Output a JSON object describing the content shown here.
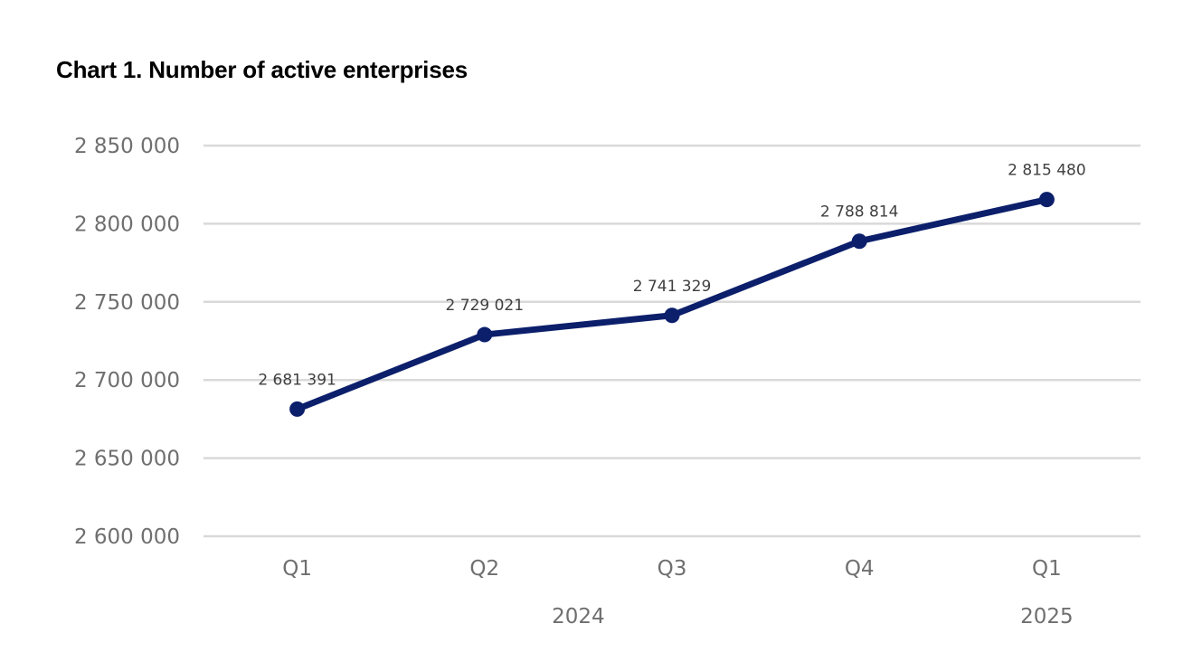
{
  "chart_data": {
    "type": "line",
    "title": "Chart 1. Number of active enterprises",
    "xlabel": "",
    "ylabel": "",
    "categories": [
      "Q1",
      "Q2",
      "Q3",
      "Q4",
      "Q1"
    ],
    "category_groups": [
      {
        "label": "2024",
        "span": [
          0,
          3
        ]
      },
      {
        "label": "2025",
        "span": [
          4,
          4
        ]
      }
    ],
    "series": [
      {
        "values": [
          2681391,
          2729021,
          2741329,
          2788814,
          2815480
        ],
        "data_labels": [
          "2 681 391",
          "2 729 021",
          "2 741 329",
          "2 788 814",
          "2 815 480"
        ]
      }
    ],
    "ylim": [
      2600000,
      2850000
    ],
    "yticks": [
      2600000,
      2650000,
      2700000,
      2750000,
      2800000,
      2850000
    ],
    "ytick_labels": [
      "2 600 000",
      "2 650 000",
      "2 700 000",
      "2 750 000",
      "2 800 000",
      "2 850 000"
    ],
    "grid": true,
    "legend": "none",
    "colors": {
      "line": "#0c1f6b",
      "grid": "#d9d9d9",
      "tick_text": "#6f6f6f",
      "data_label_text": "#404040"
    }
  }
}
